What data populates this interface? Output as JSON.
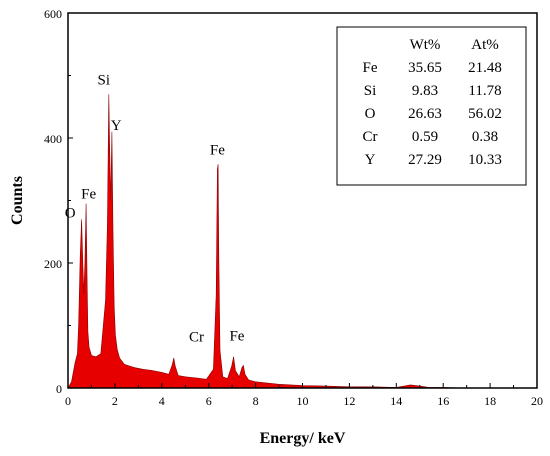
{
  "chart_data": {
    "type": "area",
    "xlabel": "Energy/ keV",
    "ylabel": "Counts",
    "xlim": [
      0,
      20
    ],
    "ylim": [
      0,
      600
    ],
    "x_ticks": [
      0,
      2,
      4,
      6,
      8,
      10,
      12,
      14,
      16,
      18,
      20
    ],
    "y_ticks": [
      0,
      200,
      400,
      600
    ],
    "fill_color": "#e60000",
    "spectrum": {
      "x": [
        0,
        0.15,
        0.3,
        0.4,
        0.45,
        0.52,
        0.58,
        0.63,
        0.68,
        0.72,
        0.77,
        0.82,
        0.85,
        0.9,
        1.0,
        1.2,
        1.4,
        1.6,
        1.68,
        1.74,
        1.78,
        1.82,
        1.87,
        1.92,
        1.97,
        2.02,
        2.1,
        2.2,
        2.4,
        2.8,
        3.2,
        3.6,
        4.0,
        4.3,
        4.45,
        4.51,
        4.57,
        4.7,
        5.0,
        5.5,
        5.9,
        6.2,
        6.32,
        6.37,
        6.4,
        6.43,
        6.48,
        6.6,
        6.8,
        6.98,
        7.06,
        7.14,
        7.3,
        7.42,
        7.48,
        7.55,
        7.7,
        8.0,
        9.0,
        10.0,
        11.0,
        12.0,
        13.0,
        14.0,
        14.6,
        15.0,
        15.4,
        16.0,
        17.0,
        18.0,
        19.0,
        20.0
      ],
      "y": [
        0,
        10,
        40,
        55,
        100,
        210,
        270,
        200,
        150,
        200,
        295,
        160,
        90,
        65,
        52,
        50,
        55,
        140,
        260,
        470,
        380,
        300,
        410,
        250,
        130,
        85,
        62,
        48,
        38,
        33,
        30,
        28,
        25,
        22,
        38,
        48,
        35,
        20,
        18,
        16,
        14,
        30,
        150,
        350,
        358,
        210,
        60,
        18,
        15,
        35,
        50,
        28,
        18,
        33,
        36,
        22,
        13,
        10,
        6,
        4,
        3,
        2,
        2,
        1,
        5,
        3,
        1,
        1,
        0,
        0,
        0,
        0
      ]
    },
    "peak_labels": [
      {
        "text": "O",
        "x": 0.52,
        "y": 270
      },
      {
        "text": "Fe",
        "x": 0.71,
        "y": 295
      },
      {
        "text": "Si",
        "x": 1.74,
        "y": 470
      },
      {
        "text": "Y",
        "x": 1.97,
        "y": 410
      },
      {
        "text": "Fe",
        "x": 6.37,
        "y": 358
      },
      {
        "text": "Cr",
        "x": 5.48,
        "y": 55
      },
      {
        "text": "Fe",
        "x": 7.12,
        "y": 70
      }
    ],
    "table": {
      "headers": [
        "",
        "Wt%",
        "At%"
      ],
      "rows": [
        [
          "Fe",
          "35.65",
          "21.48"
        ],
        [
          "Si",
          "9.83",
          "11.78"
        ],
        [
          "O",
          "26.63",
          "56.02"
        ],
        [
          "Cr",
          "0.59",
          "0.38"
        ],
        [
          "Y",
          "27.29",
          "10.33"
        ]
      ]
    }
  }
}
